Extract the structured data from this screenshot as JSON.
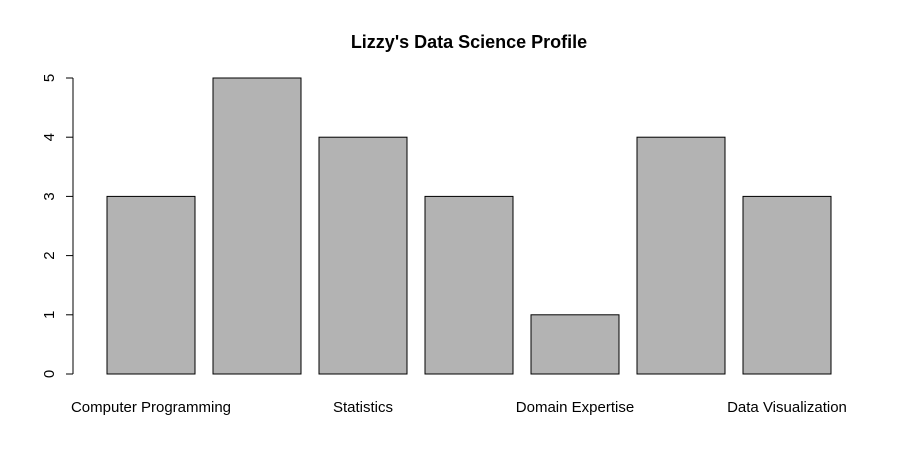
{
  "chart_data": {
    "type": "bar",
    "title": "Lizzy's Data Science Profile",
    "xlabel": "",
    "ylabel": "",
    "categories": [
      "Computer Programming",
      "",
      "Statistics",
      "",
      "Domain Expertise",
      "",
      "Data Visualization"
    ],
    "values": [
      3,
      5,
      4,
      3,
      1,
      4,
      3
    ],
    "ylim": [
      0,
      5
    ],
    "yticks": [
      "0",
      "1",
      "2",
      "3",
      "4",
      "5"
    ],
    "grid": false,
    "bar_color": "#b3b3b3",
    "legend": null
  }
}
